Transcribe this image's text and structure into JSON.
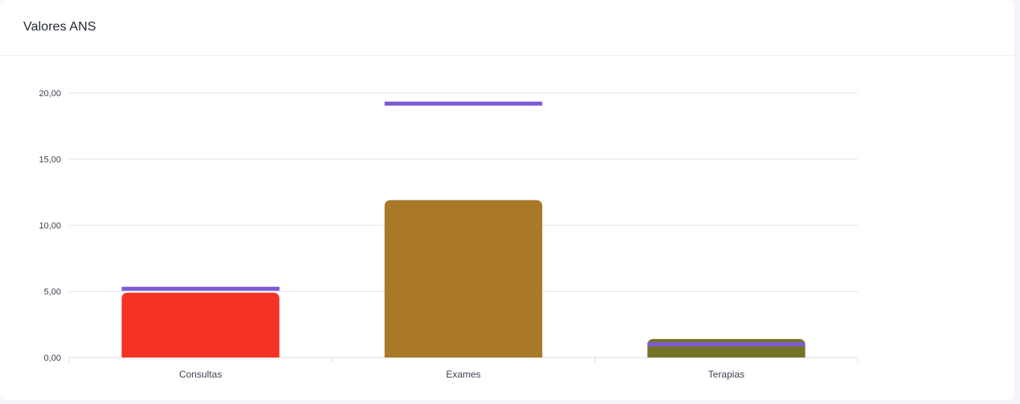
{
  "card": {
    "title": "Valores ANS"
  },
  "chart_data": {
    "type": "bar",
    "title": "Valores ANS",
    "xlabel": "",
    "ylabel": "",
    "ylim": [
      0,
      20
    ],
    "y_ticks": [
      "0,00",
      "5,00",
      "10,00",
      "15,00",
      "20,00"
    ],
    "categories": [
      "Consultas",
      "Exames",
      "Terapias"
    ],
    "bar_colors": [
      "#f53325",
      "#a97928",
      "#747428"
    ],
    "target_color": "#7c5ad6",
    "grid": true,
    "series": [
      {
        "type": "bar",
        "values": [
          4.9,
          11.9,
          1.4
        ]
      },
      {
        "type": "target_line",
        "values": [
          5.2,
          19.2,
          1.0
        ]
      }
    ]
  }
}
